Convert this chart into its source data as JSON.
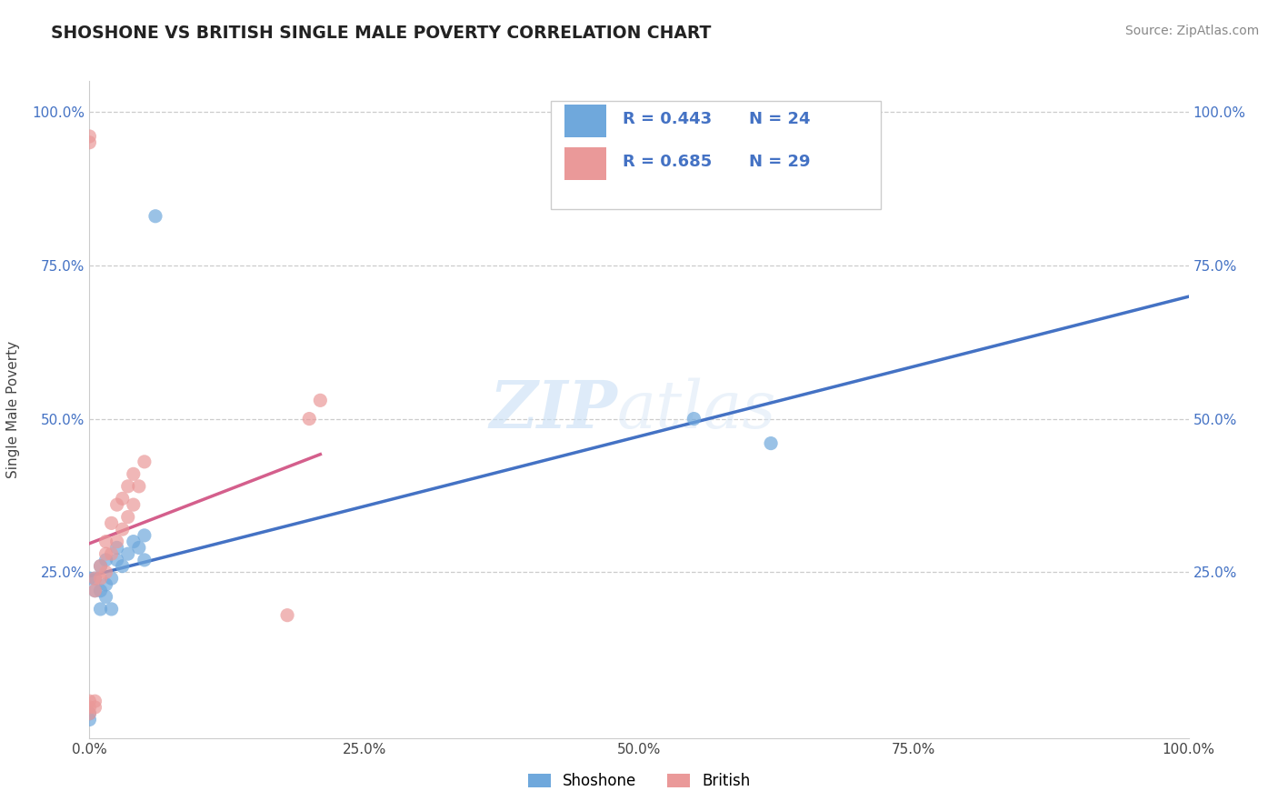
{
  "title": "SHOSHONE VS BRITISH SINGLE MALE POVERTY CORRELATION CHART",
  "source": "Source: ZipAtlas.com",
  "ylabel": "Single Male Poverty",
  "xlim": [
    0.0,
    1.0
  ],
  "ylim": [
    -0.02,
    1.05
  ],
  "xtick_labels": [
    "0.0%",
    "25.0%",
    "50.0%",
    "75.0%",
    "100.0%"
  ],
  "xtick_values": [
    0.0,
    0.25,
    0.5,
    0.75,
    1.0
  ],
  "ytick_labels": [
    "25.0%",
    "50.0%",
    "75.0%",
    "100.0%"
  ],
  "ytick_values": [
    0.25,
    0.5,
    0.75,
    1.0
  ],
  "shoshone_color": "#6fa8dc",
  "british_color": "#ea9999",
  "shoshone_line_color": "#4472c4",
  "british_line_color": "#d45f8c",
  "legend_r_shoshone": "R = 0.443",
  "legend_n_shoshone": "N = 24",
  "legend_r_british": "R = 0.685",
  "legend_n_british": "N = 29",
  "watermark_zip": "ZIP",
  "watermark_atlas": "atlas",
  "shoshone_x": [
    0.0,
    0.0,
    0.0,
    0.005,
    0.005,
    0.01,
    0.01,
    0.01,
    0.015,
    0.015,
    0.015,
    0.02,
    0.02,
    0.025,
    0.025,
    0.03,
    0.035,
    0.04,
    0.045,
    0.05,
    0.05,
    0.06,
    0.55,
    0.62
  ],
  "shoshone_y": [
    0.01,
    0.02,
    0.24,
    0.22,
    0.24,
    0.19,
    0.22,
    0.26,
    0.21,
    0.23,
    0.27,
    0.19,
    0.24,
    0.27,
    0.29,
    0.26,
    0.28,
    0.3,
    0.29,
    0.27,
    0.31,
    0.83,
    0.5,
    0.46
  ],
  "british_x": [
    0.0,
    0.0,
    0.0,
    0.0,
    0.0,
    0.005,
    0.005,
    0.005,
    0.005,
    0.01,
    0.01,
    0.015,
    0.015,
    0.015,
    0.02,
    0.02,
    0.025,
    0.025,
    0.03,
    0.03,
    0.035,
    0.035,
    0.04,
    0.04,
    0.045,
    0.05,
    0.18,
    0.2,
    0.21
  ],
  "british_y": [
    0.02,
    0.03,
    0.04,
    0.95,
    0.96,
    0.03,
    0.04,
    0.22,
    0.24,
    0.24,
    0.26,
    0.25,
    0.28,
    0.3,
    0.28,
    0.33,
    0.3,
    0.36,
    0.32,
    0.37,
    0.34,
    0.39,
    0.36,
    0.41,
    0.39,
    0.43,
    0.18,
    0.5,
    0.53
  ]
}
